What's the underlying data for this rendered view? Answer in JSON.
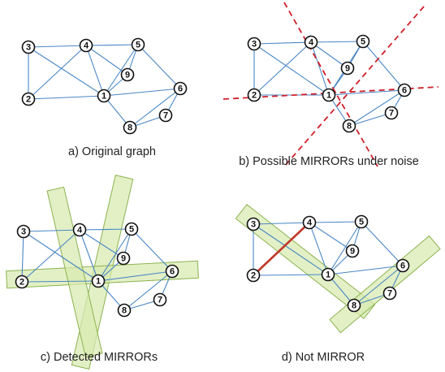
{
  "panels": [
    {
      "id": "a",
      "caption": "a) Original graph",
      "mode": "none"
    },
    {
      "id": "b",
      "caption": "b) Possible MIRRORs under noise",
      "mode": "dashed"
    },
    {
      "id": "c",
      "caption": "c) Detected MIRRORs",
      "mode": "bands"
    },
    {
      "id": "d",
      "caption": "d) Not MIRROR",
      "mode": "not-mirror"
    }
  ],
  "nodes": [
    "1",
    "2",
    "3",
    "4",
    "5",
    "6",
    "7",
    "8",
    "9"
  ],
  "edges": [
    [
      "3",
      "4"
    ],
    [
      "4",
      "5"
    ],
    [
      "3",
      "2"
    ],
    [
      "3",
      "1"
    ],
    [
      "4",
      "2"
    ],
    [
      "4",
      "1"
    ],
    [
      "4",
      "9"
    ],
    [
      "2",
      "1"
    ],
    [
      "1",
      "5"
    ],
    [
      "1",
      "9"
    ],
    [
      "9",
      "5"
    ],
    [
      "5",
      "6"
    ],
    [
      "1",
      "6"
    ],
    [
      "1",
      "8"
    ],
    [
      "8",
      "6"
    ],
    [
      "8",
      "7"
    ],
    [
      "7",
      "6"
    ]
  ],
  "highlighted_edge": [
    "2",
    "4"
  ],
  "colors": {
    "edge": "#4a86c5",
    "highlighted_edge": "#c0392b",
    "mirror_dashed": "#d0202a",
    "mirror_band": "#d8eab0"
  }
}
